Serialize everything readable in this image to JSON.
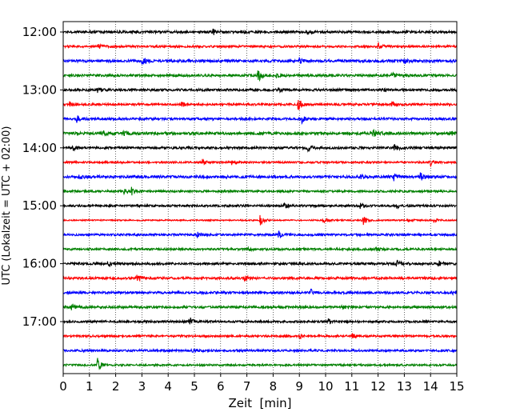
{
  "chart_data": {
    "type": "line",
    "title": "",
    "xlabel": "Zeit  [min]",
    "ylabel": "UTC (Lokalzeit = UTC + 02:00)",
    "xlim": [
      0,
      15
    ],
    "x_ticks": [
      "0",
      "1",
      "2",
      "3",
      "4",
      "5",
      "6",
      "7",
      "8",
      "9",
      "10",
      "11",
      "12",
      "13",
      "14",
      "15"
    ],
    "y_ticks": [
      "12:00",
      "13:00",
      "14:00",
      "15:00",
      "16:00",
      "17:00"
    ],
    "grid": "vertical-dotted",
    "legend": "none",
    "trace_color_cycle": [
      "#000000",
      "#ff0000",
      "#0000ff",
      "#008000"
    ],
    "rows": [
      {
        "start": "12:00",
        "color": "#000000",
        "noise": 0.9,
        "events": [
          {
            "t": 5.7,
            "amp": 1.3
          },
          {
            "t": 6.8,
            "amp": 1.1
          },
          {
            "t": 9.3,
            "amp": 1.2
          }
        ]
      },
      {
        "start": "12:15",
        "color": "#ff0000",
        "noise": 0.8,
        "events": [
          {
            "t": 1.3,
            "amp": 1.3
          },
          {
            "t": 12.0,
            "amp": 1.8
          }
        ]
      },
      {
        "start": "12:30",
        "color": "#0000ff",
        "noise": 1.0,
        "events": [
          {
            "t": 3.0,
            "amp": 1.6
          },
          {
            "t": 9.0,
            "amp": 1.2
          },
          {
            "t": 13.0,
            "amp": 1.3
          }
        ]
      },
      {
        "start": "12:45",
        "color": "#008000",
        "noise": 0.9,
        "events": [
          {
            "t": 7.4,
            "amp": 3.8
          },
          {
            "t": 8.1,
            "amp": 1.3
          },
          {
            "t": 12.5,
            "amp": 1.6
          }
        ]
      },
      {
        "start": "13:00",
        "color": "#000000",
        "noise": 0.9,
        "events": [
          {
            "t": 1.3,
            "amp": 1.2
          },
          {
            "t": 8.2,
            "amp": 1.1
          },
          {
            "t": 12.2,
            "amp": 1.1
          }
        ]
      },
      {
        "start": "13:15",
        "color": "#ff0000",
        "noise": 0.8,
        "events": [
          {
            "t": 0.2,
            "amp": 2.0
          },
          {
            "t": 4.5,
            "amp": 1.3
          },
          {
            "t": 8.95,
            "amp": 3.6
          },
          {
            "t": 12.5,
            "amp": 1.3
          }
        ]
      },
      {
        "start": "13:30",
        "color": "#0000ff",
        "noise": 0.9,
        "events": [
          {
            "t": 0.5,
            "amp": 1.8
          },
          {
            "t": 9.05,
            "amp": 2.4
          }
        ]
      },
      {
        "start": "13:45",
        "color": "#008000",
        "noise": 1.0,
        "events": [
          {
            "t": 1.5,
            "amp": 1.4
          },
          {
            "t": 2.3,
            "amp": 1.6
          },
          {
            "t": 11.8,
            "amp": 2.0
          },
          {
            "t": 14.7,
            "amp": 1.6
          }
        ]
      },
      {
        "start": "14:00",
        "color": "#000000",
        "noise": 0.9,
        "events": [
          {
            "t": 0.3,
            "amp": 1.8
          },
          {
            "t": 9.3,
            "amp": 1.4
          },
          {
            "t": 12.6,
            "amp": 1.7
          }
        ]
      },
      {
        "start": "14:15",
        "color": "#ff0000",
        "noise": 0.7,
        "events": [
          {
            "t": 5.3,
            "amp": 1.3
          },
          {
            "t": 6.4,
            "amp": 1.3
          },
          {
            "t": 14.0,
            "amp": 1.5
          }
        ]
      },
      {
        "start": "14:30",
        "color": "#0000ff",
        "noise": 1.0,
        "events": [
          {
            "t": 0.6,
            "amp": 1.6
          },
          {
            "t": 11.3,
            "amp": 1.7
          },
          {
            "t": 12.6,
            "amp": 1.7
          },
          {
            "t": 13.6,
            "amp": 2.0
          }
        ]
      },
      {
        "start": "14:45",
        "color": "#008000",
        "noise": 0.8,
        "events": [
          {
            "t": 2.3,
            "amp": 1.4
          },
          {
            "t": 2.6,
            "amp": 1.6
          }
        ]
      },
      {
        "start": "15:00",
        "color": "#000000",
        "noise": 0.8,
        "events": [
          {
            "t": 8.4,
            "amp": 1.3
          },
          {
            "t": 11.3,
            "amp": 1.5
          },
          {
            "t": 12.7,
            "amp": 1.3
          }
        ]
      },
      {
        "start": "15:15",
        "color": "#ff0000",
        "noise": 0.5,
        "events": [
          {
            "t": 7.5,
            "amp": 2.6
          },
          {
            "t": 9.9,
            "amp": 1.8
          },
          {
            "t": 11.4,
            "amp": 3.0
          },
          {
            "t": 13.1,
            "amp": 1.6
          },
          {
            "t": 14.1,
            "amp": 1.4
          }
        ]
      },
      {
        "start": "15:30",
        "color": "#0000ff",
        "noise": 0.8,
        "events": [
          {
            "t": 5.1,
            "amp": 1.3
          },
          {
            "t": 8.2,
            "amp": 1.9
          }
        ]
      },
      {
        "start": "15:45",
        "color": "#008000",
        "noise": 0.8,
        "events": [
          {
            "t": 7.0,
            "amp": 1.4
          },
          {
            "t": 11.9,
            "amp": 1.2
          }
        ]
      },
      {
        "start": "16:00",
        "color": "#000000",
        "noise": 0.9,
        "events": [
          {
            "t": 1.7,
            "amp": 1.5
          },
          {
            "t": 12.7,
            "amp": 1.9
          },
          {
            "t": 14.3,
            "amp": 1.2
          }
        ]
      },
      {
        "start": "16:15",
        "color": "#ff0000",
        "noise": 0.9,
        "events": [
          {
            "t": 2.8,
            "amp": 1.7
          },
          {
            "t": 6.9,
            "amp": 1.2
          }
        ]
      },
      {
        "start": "16:30",
        "color": "#0000ff",
        "noise": 0.9,
        "events": [
          {
            "t": 9.4,
            "amp": 1.9
          },
          {
            "t": 14.8,
            "amp": 1.2
          }
        ]
      },
      {
        "start": "16:45",
        "color": "#008000",
        "noise": 0.9,
        "events": [
          {
            "t": 0.3,
            "amp": 1.3
          },
          {
            "t": 10.6,
            "amp": 1.2
          }
        ]
      },
      {
        "start": "17:00",
        "color": "#000000",
        "noise": 0.8,
        "events": [
          {
            "t": 4.8,
            "amp": 2.4
          },
          {
            "t": 10.1,
            "amp": 1.1
          }
        ]
      },
      {
        "start": "17:15",
        "color": "#ff0000",
        "noise": 0.8,
        "events": [
          {
            "t": 9.0,
            "amp": 1.2
          },
          {
            "t": 11.0,
            "amp": 1.1
          }
        ]
      },
      {
        "start": "17:30",
        "color": "#0000ff",
        "noise": 0.8,
        "events": [
          {
            "t": 4.9,
            "amp": 1.3
          }
        ]
      },
      {
        "start": "17:45",
        "color": "#008000",
        "noise": 0.7,
        "events": [
          {
            "t": 1.3,
            "amp": 3.5
          }
        ]
      }
    ]
  }
}
